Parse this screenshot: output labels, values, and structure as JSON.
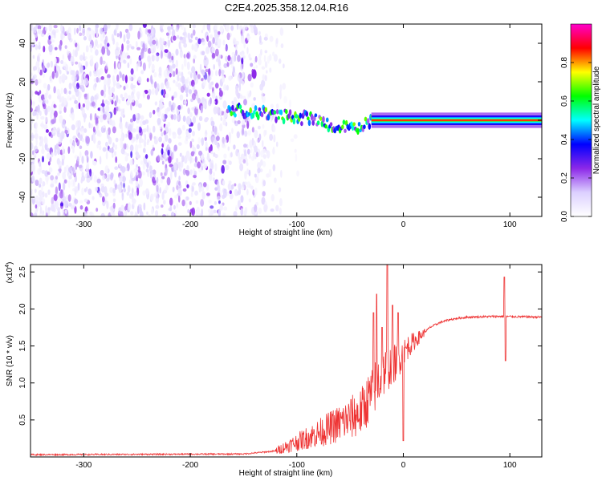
{
  "title": "C2E4.2025.358.12.04.R16",
  "chart_data": [
    {
      "type": "heatmap",
      "xlabel": "Height of straight line (km)",
      "ylabel": "Frequency (Hz)",
      "xlim": [
        -350,
        130
      ],
      "ylim": [
        -50,
        50
      ],
      "xticks": [
        -300,
        -200,
        -100,
        0,
        100
      ],
      "yticks": [
        -40,
        -20,
        0,
        20,
        40
      ],
      "colorbar": {
        "label": "Normalized spectral amplitude",
        "range": [
          0,
          1
        ],
        "ticks": [
          "0.0",
          "0.2",
          "0.4",
          "0.6",
          "0.8"
        ],
        "tick_values": [
          0,
          0.2,
          0.4,
          0.6,
          0.8
        ],
        "colormap": [
          "#ffffff",
          "#dcd0ff",
          "#8c28e8",
          "#0000ff",
          "#00ffff",
          "#00ff00",
          "#ffff00",
          "#ff0000",
          "#ff00cc"
        ]
      },
      "features": {
        "noise_region_x": [
          -350,
          -110
        ],
        "carrier_track": [
          {
            "x": -160,
            "f": 5
          },
          {
            "x": -120,
            "f": 3
          },
          {
            "x": -80,
            "f": 0
          },
          {
            "x": -60,
            "f": -4
          },
          {
            "x": -45,
            "f": -4
          },
          {
            "x": -30,
            "f": 0
          },
          {
            "x": 0,
            "f": 0
          },
          {
            "x": 130,
            "f": 0
          }
        ],
        "blob": {
          "x": -140,
          "f": 24
        }
      }
    },
    {
      "type": "line",
      "xlabel": "Height of straight line (km)",
      "ylabel": "SNR (10 * v/v)",
      "scale_label": "(x10",
      "scale_exponent": "4",
      "scale_suffix": ")",
      "xlim": [
        -350,
        130
      ],
      "ylim": [
        0,
        2.6
      ],
      "xticks": [
        -300,
        -200,
        -100,
        0,
        100
      ],
      "yticks": [
        "0.5",
        "1.0",
        "1.5",
        "2.0",
        "2.5"
      ],
      "ytick_values": [
        0.5,
        1.0,
        1.5,
        2.0,
        2.5
      ],
      "color": "#ee3333",
      "series": [
        {
          "profile": [
            [
              -350,
              0.03
            ],
            [
              -150,
              0.04
            ],
            [
              -120,
              0.08
            ],
            [
              -100,
              0.2
            ],
            [
              -80,
              0.32
            ],
            [
              -60,
              0.45
            ],
            [
              -40,
              0.6
            ],
            [
              -30,
              0.85
            ],
            [
              -25,
              1.0
            ],
            [
              -15,
              1.2
            ],
            [
              -5,
              1.3
            ],
            [
              5,
              1.5
            ],
            [
              15,
              1.62
            ],
            [
              25,
              1.75
            ],
            [
              35,
              1.82
            ],
            [
              45,
              1.86
            ],
            [
              60,
              1.89
            ],
            [
              90,
              1.9
            ],
            [
              130,
              1.89
            ]
          ],
          "spikes": [
            [
              -28,
              1.95
            ],
            [
              -25,
              2.2
            ],
            [
              -20,
              1.75
            ],
            [
              -15,
              2.6
            ],
            [
              -10,
              2.05
            ],
            [
              -5,
              1.95
            ],
            [
              0,
              0.22
            ],
            [
              95,
              2.43
            ],
            [
              96,
              1.3
            ]
          ]
        }
      ]
    }
  ]
}
